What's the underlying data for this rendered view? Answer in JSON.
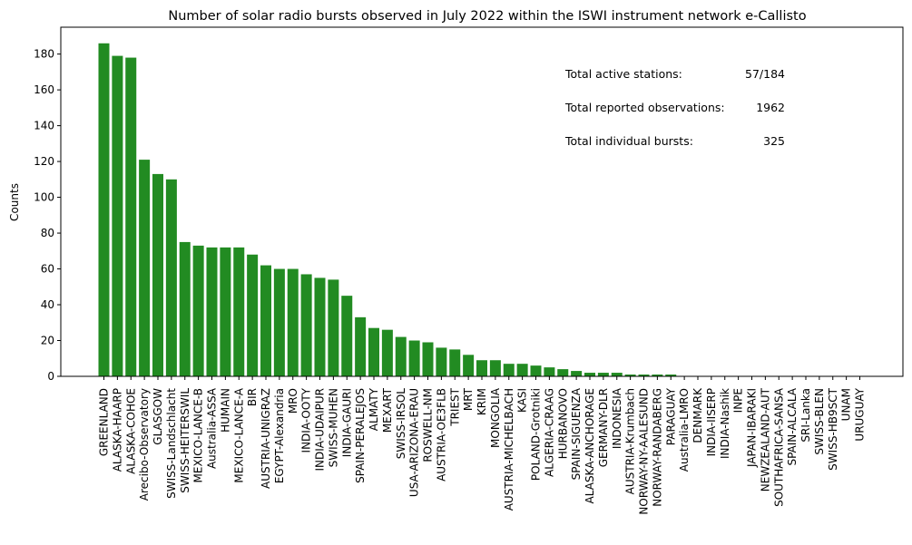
{
  "chart_data": {
    "type": "bar",
    "title": "Number of solar radio bursts observed in July 2022 within the ISWI instrument network e-Callisto",
    "ylabel": "Counts",
    "xlabel": "",
    "ylim": [
      0,
      195
    ],
    "yticks": [
      0,
      20,
      40,
      60,
      80,
      100,
      120,
      140,
      160,
      180
    ],
    "bar_color": "#228b22",
    "grid": false,
    "categories": [
      "GREENLAND",
      "ALASKA-HAARP",
      "ALASKA-COHOE",
      "Arecibo-Observatory",
      "GLASGOW",
      "SWISS-Landschlacht",
      "SWISS-HEITERSWIL",
      "MEXICO-LANCE-B",
      "Australia-ASSA",
      "HUMAIN",
      "MEXICO-LANCE-A",
      "BIR",
      "AUSTRIA-UNIGRAZ",
      "EGYPT-Alexandria",
      "MRO",
      "INDIA-OOTY",
      "INDIA-UDAIPUR",
      "SWISS-MUHEN",
      "INDIA-GAURI",
      "SPAIN-PERALEJOS",
      "ALMATY",
      "MEXART",
      "SWISS-IRSOL",
      "USA-ARIZONA-ERAU",
      "ROSWELL-NM",
      "AUSTRIA-OE3FLB",
      "TRIEST",
      "MRT",
      "KRIM",
      "MONGOLIA",
      "AUSTRIA-MICHELBACH",
      "KASI",
      "POLAND-Grotniki",
      "ALGERIA-CRAAG",
      "HURBANOVO",
      "SPAIN-SIGUENZA",
      "ALASKA-ANCHORAGE",
      "GERMANY-DLR",
      "INDONESIA",
      "AUSTRIA-Krumbach",
      "NORWAY-NY-AALESUND",
      "NORWAY-RANDABERG",
      "PARAGUAY",
      "Australia-LMRO",
      "DENMARK",
      "INDIA-IISERP",
      "INDIA-Nashik",
      "INPE",
      "JAPAN-IBARAKI",
      "NEWZEALAND-AUT",
      "SOUTHAFRICA-SANSA",
      "SPAIN-ALCALA",
      "SRI-Lanka",
      "SWISS-BLEN",
      "SWISS-HB9SCT",
      "UNAM",
      "URUGUAY"
    ],
    "values": [
      186,
      179,
      178,
      121,
      113,
      110,
      75,
      73,
      72,
      72,
      72,
      68,
      62,
      60,
      60,
      57,
      55,
      54,
      45,
      33,
      27,
      26,
      22,
      20,
      19,
      16,
      15,
      12,
      9,
      9,
      7,
      7,
      6,
      5,
      4,
      3,
      2,
      2,
      2,
      1,
      1,
      1,
      1,
      0,
      0,
      0,
      0,
      0,
      0,
      0,
      0,
      0,
      0,
      0,
      0,
      0,
      0
    ],
    "annotations": [
      {
        "label": "Total active stations:",
        "value": "57/184"
      },
      {
        "label": "Total reported observations:",
        "value": "1962"
      },
      {
        "label": "Total individual bursts:",
        "value": "325"
      }
    ]
  }
}
